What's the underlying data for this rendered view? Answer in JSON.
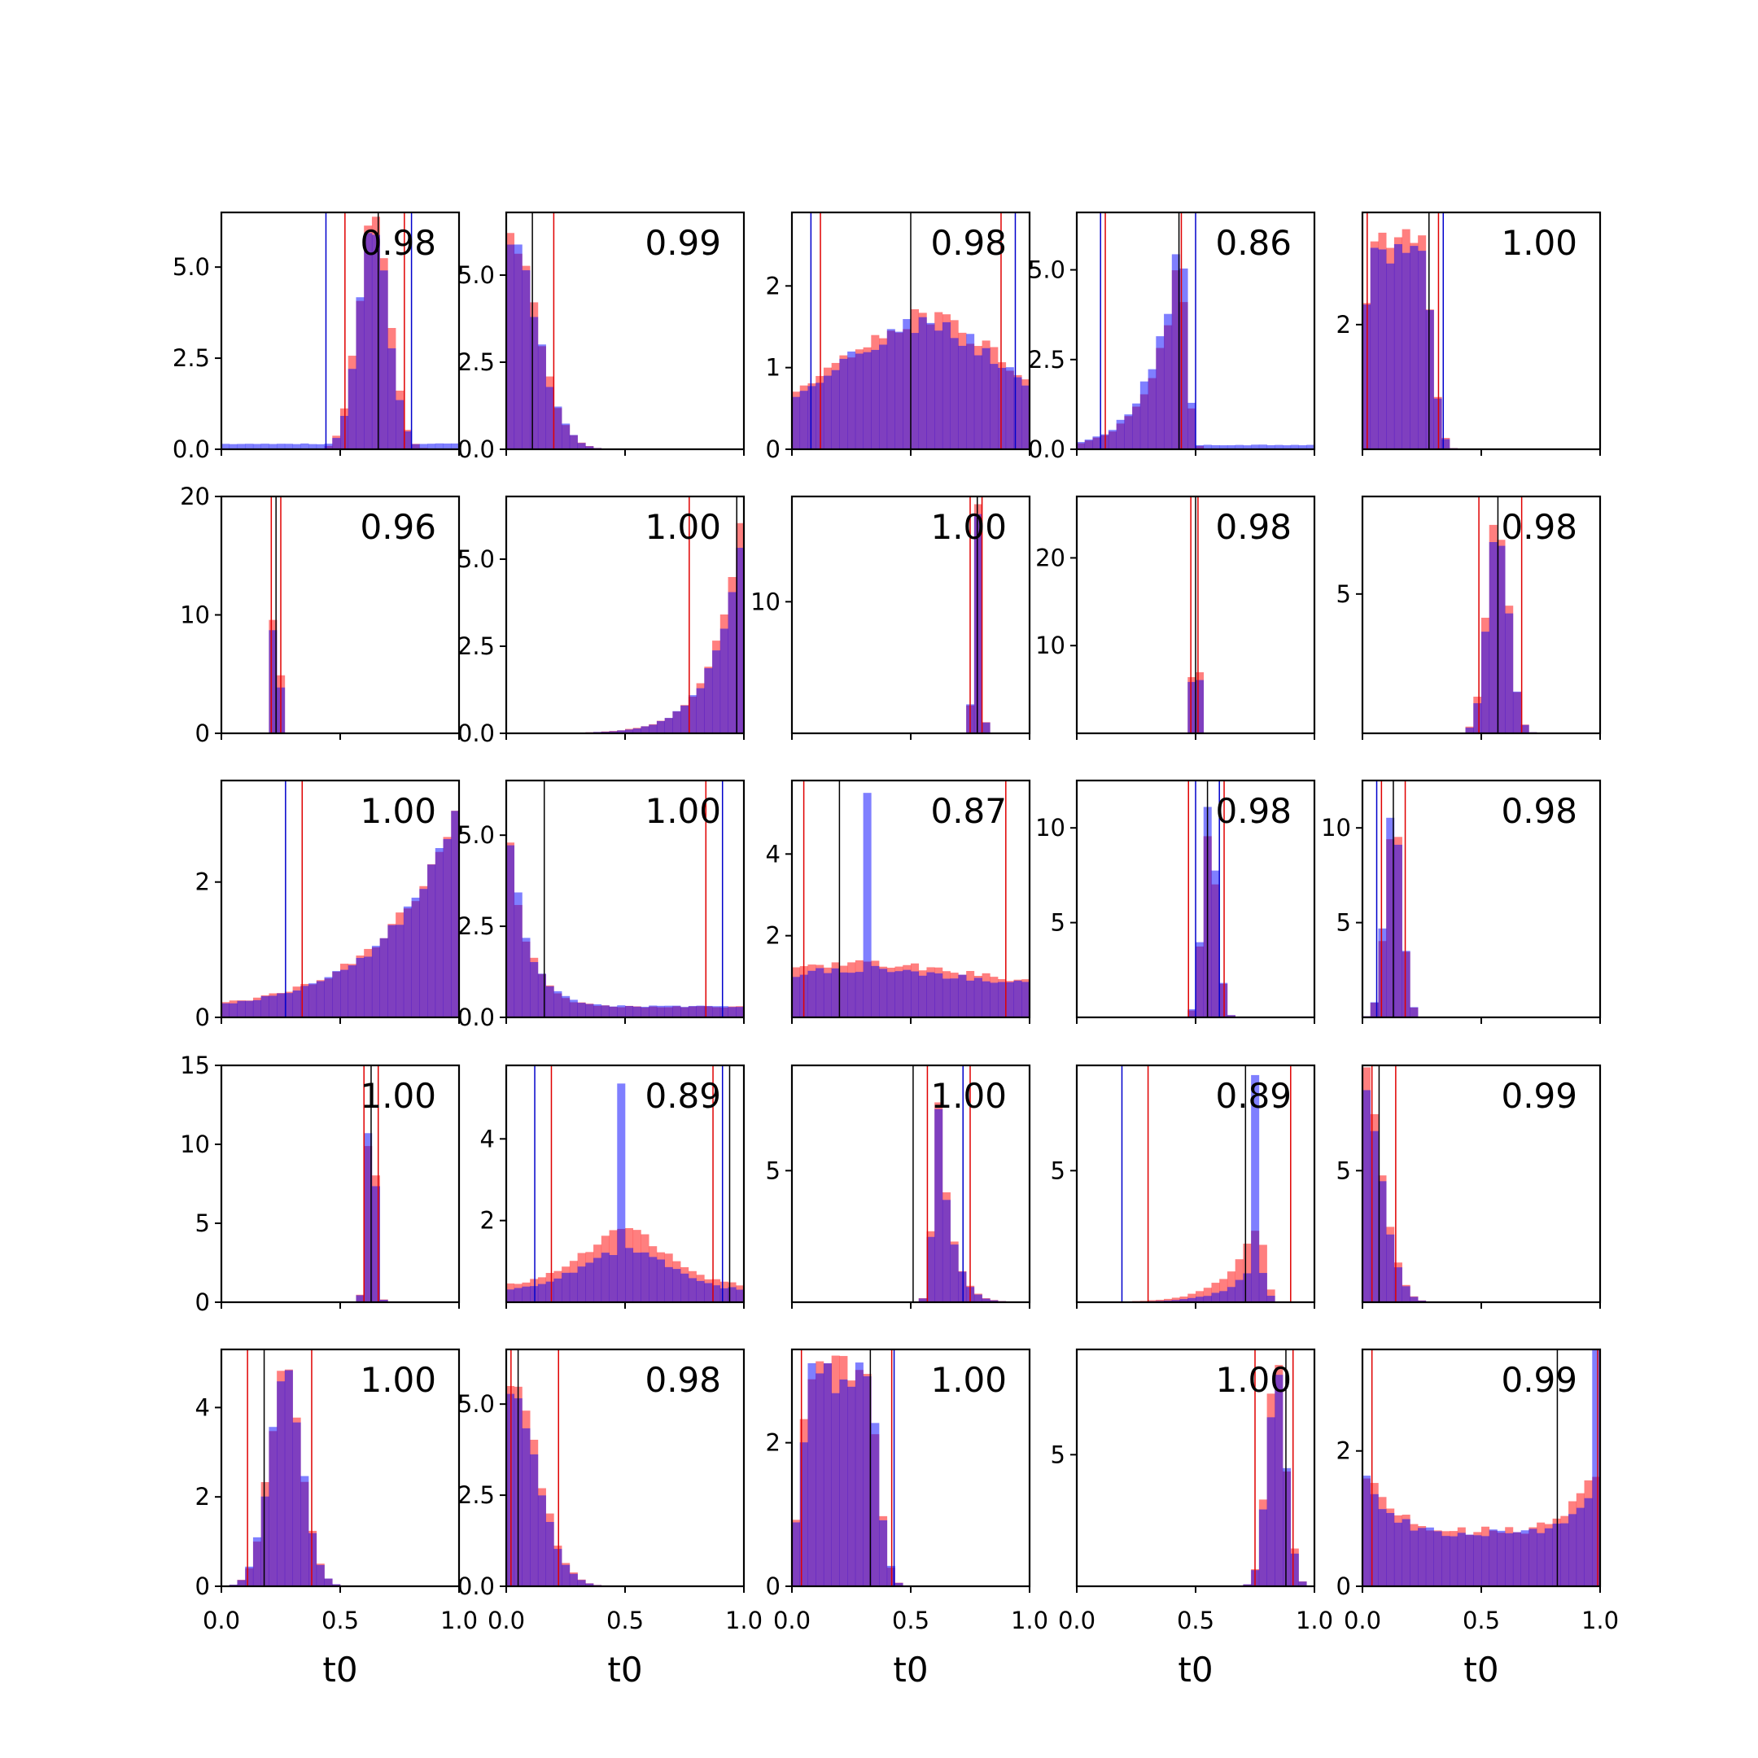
{
  "figure": {
    "description_free": true,
    "grid_rows": 5,
    "grid_cols": 5,
    "x_label": "t0",
    "x_ticks": [
      "0.0",
      "0.5",
      "1.0"
    ],
    "colors": {
      "red_hist": "#ff0000",
      "blue_hist": "#0000ff",
      "overlap": "#7f3fbf",
      "red_line": "#e00000",
      "blue_line": "#0000cc",
      "black_line": "#000000",
      "axis": "#000000"
    }
  },
  "chart_data": [
    {
      "type": "bar",
      "score": "0.98",
      "ymax": 6.5,
      "yticks": [
        "0.0",
        "2.5",
        "5.0"
      ],
      "ytick_vals": [
        0,
        2.5,
        5
      ],
      "red_lines": [
        0.52,
        0.77
      ],
      "blue_lines": [
        0.44,
        0.8
      ],
      "black_line": 0.66,
      "dists": [
        {
          "kind": "gauss",
          "c": 0.64,
          "s": 0.065,
          "h": 6.3,
          "red": 1.0,
          "blue": 0.95
        },
        {
          "kind": "flat",
          "h": 0.15,
          "blue": 1
        }
      ]
    },
    {
      "type": "bar",
      "score": "0.99",
      "ymax": 6.8,
      "yticks": [
        "0.0",
        "2.5",
        "5.0"
      ],
      "ytick_vals": [
        0,
        2.5,
        5
      ],
      "red_lines": [
        0.0,
        0.2
      ],
      "blue_lines": [],
      "black_line": 0.11,
      "dists": [
        {
          "kind": "halfgauss",
          "c": 0.0,
          "s": 0.12,
          "h": 6.5,
          "red": 1.0,
          "blue": 0.95
        }
      ]
    },
    {
      "type": "bar",
      "score": "0.98",
      "ymax": 2.9,
      "yticks": [
        "0",
        "1",
        "2"
      ],
      "ytick_vals": [
        0,
        1,
        2
      ],
      "red_lines": [
        0.12,
        0.88
      ],
      "blue_lines": [
        0.08,
        0.94
      ],
      "black_line": 0.5,
      "dists": [
        {
          "kind": "broad",
          "c": 0.55,
          "s": 0.3,
          "h": 1.6,
          "base": 0.5,
          "red": 1.0,
          "blue": 0.95
        }
      ]
    },
    {
      "type": "bar",
      "score": "0.86",
      "ymax": 6.6,
      "yticks": [
        "0.0",
        "2.5",
        "5.0"
      ],
      "ytick_vals": [
        0,
        2.5,
        5
      ],
      "red_lines": [
        0.12,
        0.44
      ],
      "blue_lines": [
        0.1,
        0.5
      ],
      "black_line": 0.43,
      "dists": [
        {
          "kind": "skewL",
          "c": 0.43,
          "s": 0.12,
          "h": 6.0,
          "red": 0.9,
          "blue": 1.0
        },
        {
          "kind": "flat",
          "h": 0.12,
          "blue": 1
        }
      ]
    },
    {
      "type": "bar",
      "score": "1.00",
      "ymax": 3.8,
      "yticks": [
        "2"
      ],
      "ytick_vals": [
        2
      ],
      "red_lines": [
        0.02,
        0.32
      ],
      "blue_lines": [
        0.34
      ],
      "black_line": 0.28,
      "dists": [
        {
          "kind": "block",
          "c": 0.15,
          "s": 0.14,
          "h": 3.4,
          "red": 1.0,
          "blue": 0.95
        }
      ]
    },
    {
      "type": "bar",
      "score": "0.96",
      "ymax": 20,
      "yticks": [
        "0",
        "10",
        "20"
      ],
      "ytick_vals": [
        0,
        10,
        20
      ],
      "red_lines": [
        0.21,
        0.25
      ],
      "blue_lines": [],
      "black_line": 0.23,
      "dists": [
        {
          "kind": "gauss",
          "c": 0.23,
          "s": 0.012,
          "h": 19,
          "red": 1.0,
          "blue": 0.8
        }
      ]
    },
    {
      "type": "bar",
      "score": "1.00",
      "ymax": 6.8,
      "yticks": [
        "0.0",
        "2.5",
        "5.0"
      ],
      "ytick_vals": [
        0,
        2.5,
        5
      ],
      "red_lines": [
        0.77
      ],
      "blue_lines": [],
      "black_line": 0.97,
      "dists": [
        {
          "kind": "rampR",
          "c": 1.0,
          "s": 0.12,
          "h": 6.6,
          "red": 1.0,
          "blue": 0.95
        }
      ]
    },
    {
      "type": "bar",
      "score": "1.00",
      "ymax": 18,
      "yticks": [
        "10"
      ],
      "ytick_vals": [
        10
      ],
      "red_lines": [
        0.75,
        0.8
      ],
      "blue_lines": [],
      "black_line": 0.78,
      "dists": [
        {
          "kind": "gauss",
          "c": 0.78,
          "s": 0.015,
          "h": 17,
          "red": 1.0,
          "blue": 0.95
        }
      ]
    },
    {
      "type": "bar",
      "score": "0.98",
      "ymax": 27,
      "yticks": [
        "10",
        "20"
      ],
      "ytick_vals": [
        10,
        20
      ],
      "red_lines": [
        0.48,
        0.51
      ],
      "blue_lines": [],
      "black_line": 0.5,
      "dists": [
        {
          "kind": "gauss",
          "c": 0.5,
          "s": 0.01,
          "h": 26,
          "red": 1.0,
          "blue": 0.95
        }
      ]
    },
    {
      "type": "bar",
      "score": "0.98",
      "ymax": 8.5,
      "yticks": [
        "5"
      ],
      "ytick_vals": [
        5
      ],
      "red_lines": [
        0.49,
        0.67
      ],
      "blue_lines": [],
      "black_line": 0.57,
      "dists": [
        {
          "kind": "gauss",
          "c": 0.57,
          "s": 0.045,
          "h": 7.8,
          "red": 1.0,
          "blue": 0.95
        }
      ]
    },
    {
      "type": "bar",
      "score": "1.00",
      "ymax": 3.5,
      "yticks": [
        "0",
        "2"
      ],
      "ytick_vals": [
        0,
        2
      ],
      "red_lines": [
        0.34
      ],
      "blue_lines": [
        0.27
      ],
      "black_line": 1.0,
      "dists": [
        {
          "kind": "rampR",
          "c": 1.0,
          "s": 0.3,
          "h": 3.3,
          "base": 0.1,
          "red": 1.0,
          "blue": 0.95
        }
      ]
    },
    {
      "type": "bar",
      "score": "1.00",
      "ymax": 6.5,
      "yticks": [
        "0.0",
        "2.5",
        "5.0"
      ],
      "ytick_vals": [
        0,
        2.5,
        5
      ],
      "red_lines": [
        0.0,
        0.84
      ],
      "blue_lines": [
        0.0,
        0.91
      ],
      "black_line": 0.16,
      "dists": [
        {
          "kind": "decay",
          "c": 0.0,
          "s": 0.08,
          "h": 6.0,
          "base": 0.3,
          "red": 0.95,
          "blue": 1.0
        }
      ]
    },
    {
      "type": "bar",
      "score": "0.87",
      "ymax": 5.8,
      "yticks": [
        "2",
        "4"
      ],
      "ytick_vals": [
        2,
        4
      ],
      "red_lines": [
        0.05,
        0.9
      ],
      "blue_lines": [],
      "black_line": 0.2,
      "dists": [
        {
          "kind": "broad",
          "c": 0.3,
          "s": 0.4,
          "h": 1.3,
          "base": 0.8,
          "red": 1.0,
          "blue": 0.9
        },
        {
          "kind": "spike",
          "c": 0.33,
          "h": 5.6,
          "blue": 1
        }
      ]
    },
    {
      "type": "bar",
      "score": "0.98",
      "ymax": 12.5,
      "yticks": [
        "5",
        "10"
      ],
      "ytick_vals": [
        5,
        10
      ],
      "red_lines": [
        0.47,
        0.62
      ],
      "blue_lines": [
        0.5,
        0.6
      ],
      "black_line": 0.55,
      "dists": [
        {
          "kind": "gauss",
          "c": 0.56,
          "s": 0.03,
          "h": 11,
          "red": 0.9,
          "blue": 1.0
        }
      ]
    },
    {
      "type": "bar",
      "score": "0.98",
      "ymax": 12.5,
      "yticks": [
        "5",
        "10"
      ],
      "ytick_vals": [
        5,
        10
      ],
      "red_lines": [
        0.08,
        0.18
      ],
      "blue_lines": [
        0.06
      ],
      "black_line": 0.13,
      "dists": [
        {
          "kind": "gauss",
          "c": 0.13,
          "s": 0.035,
          "h": 11,
          "red": 0.95,
          "blue": 1.0
        }
      ]
    },
    {
      "type": "bar",
      "score": "1.00",
      "ymax": 15,
      "yticks": [
        "0",
        "5",
        "10",
        "15"
      ],
      "ytick_vals": [
        0,
        5,
        10,
        15
      ],
      "red_lines": [
        0.6,
        0.66
      ],
      "blue_lines": [],
      "black_line": 0.63,
      "dists": [
        {
          "kind": "gauss",
          "c": 0.63,
          "s": 0.018,
          "h": 14,
          "red": 1.0,
          "blue": 0.95
        }
      ]
    },
    {
      "type": "bar",
      "score": "0.89",
      "ymax": 5.8,
      "yticks": [
        "2",
        "4"
      ],
      "ytick_vals": [
        2,
        4
      ],
      "red_lines": [
        0.19,
        0.87
      ],
      "blue_lines": [
        0.12,
        0.91
      ],
      "black_line": 0.94,
      "dists": [
        {
          "kind": "broad",
          "c": 0.5,
          "s": 0.18,
          "h": 1.7,
          "base": 0.4,
          "red": 1.0,
          "blue": 0.75
        },
        {
          "kind": "spike",
          "c": 0.47,
          "h": 5.6,
          "blue": 1
        }
      ]
    },
    {
      "type": "bar",
      "score": "1.00",
      "ymax": 9,
      "yticks": [
        "5"
      ],
      "ytick_vals": [
        5
      ],
      "red_lines": [
        0.57,
        0.75
      ],
      "blue_lines": [
        0.72
      ],
      "black_line": 0.51,
      "dists": [
        {
          "kind": "skewR",
          "c": 0.62,
          "s": 0.05,
          "h": 8.0,
          "red": 1.0,
          "blue": 0.95
        }
      ]
    },
    {
      "type": "bar",
      "score": "0.89",
      "ymax": 9,
      "yticks": [
        "5"
      ],
      "ytick_vals": [
        5
      ],
      "red_lines": [
        0.3,
        0.9
      ],
      "blue_lines": [
        0.19
      ],
      "black_line": 0.71,
      "dists": [
        {
          "kind": "skewL",
          "c": 0.76,
          "s": 0.12,
          "h": 3.0,
          "red": 1.0,
          "blue": 0.5
        },
        {
          "kind": "spike",
          "c": 0.76,
          "h": 8.5,
          "blue": 1
        }
      ]
    },
    {
      "type": "bar",
      "score": "0.99",
      "ymax": 9,
      "yticks": [
        "5"
      ],
      "ytick_vals": [
        5
      ],
      "red_lines": [
        0.04,
        0.14
      ],
      "blue_lines": [],
      "black_line": 0.07,
      "dists": [
        {
          "kind": "halfgauss",
          "c": 0.0,
          "s": 0.08,
          "h": 8.5,
          "red": 1.0,
          "blue": 0.95
        }
      ]
    },
    {
      "type": "bar",
      "score": "1.00",
      "ymax": 5.3,
      "yticks": [
        "0",
        "2",
        "4"
      ],
      "ytick_vals": [
        0,
        2,
        4
      ],
      "red_lines": [
        0.11,
        0.38
      ],
      "blue_lines": [],
      "black_line": 0.18,
      "dists": [
        {
          "kind": "gauss",
          "c": 0.27,
          "s": 0.07,
          "h": 4.7,
          "red": 1.0,
          "blue": 0.97
        }
      ]
    },
    {
      "type": "bar",
      "score": "0.98",
      "ymax": 6.5,
      "yticks": [
        "0.0",
        "2.5",
        "5.0"
      ],
      "ytick_vals": [
        0,
        2.5,
        5
      ],
      "red_lines": [
        0.02,
        0.22
      ],
      "blue_lines": [],
      "black_line": 0.05,
      "dists": [
        {
          "kind": "halfgauss",
          "c": 0.0,
          "s": 0.12,
          "h": 6.0,
          "red": 1.0,
          "blue": 0.93
        }
      ]
    },
    {
      "type": "bar",
      "score": "1.00",
      "ymax": 3.3,
      "yticks": [
        "0",
        "2"
      ],
      "ytick_vals": [
        0,
        2
      ],
      "red_lines": [
        0.04,
        0.42
      ],
      "blue_lines": [
        0.43
      ],
      "black_line": 0.33,
      "dists": [
        {
          "kind": "block",
          "c": 0.2,
          "s": 0.16,
          "h": 3.0,
          "red": 1.0,
          "blue": 0.97
        }
      ]
    },
    {
      "type": "bar",
      "score": "1.00",
      "ymax": 9,
      "yticks": [
        "5"
      ],
      "ytick_vals": [
        5
      ],
      "red_lines": [
        0.75,
        0.91
      ],
      "blue_lines": [],
      "black_line": 0.88,
      "dists": [
        {
          "kind": "gauss",
          "c": 0.84,
          "s": 0.04,
          "h": 8.4,
          "red": 1.0,
          "blue": 0.97
        }
      ]
    },
    {
      "type": "bar",
      "score": "0.99",
      "ymax": 3.5,
      "yticks": [
        "0",
        "2"
      ],
      "ytick_vals": [
        0,
        2
      ],
      "red_lines": [
        0.04,
        0.99
      ],
      "blue_lines": [],
      "black_line": 0.82,
      "dists": [
        {
          "kind": "ushape",
          "c": 0.5,
          "s": 0.5,
          "h": 1.1,
          "red": 1.0,
          "blue": 0.95
        },
        {
          "kind": "edge",
          "c": 0.99,
          "h": 3.4,
          "blue": 1
        }
      ]
    }
  ]
}
